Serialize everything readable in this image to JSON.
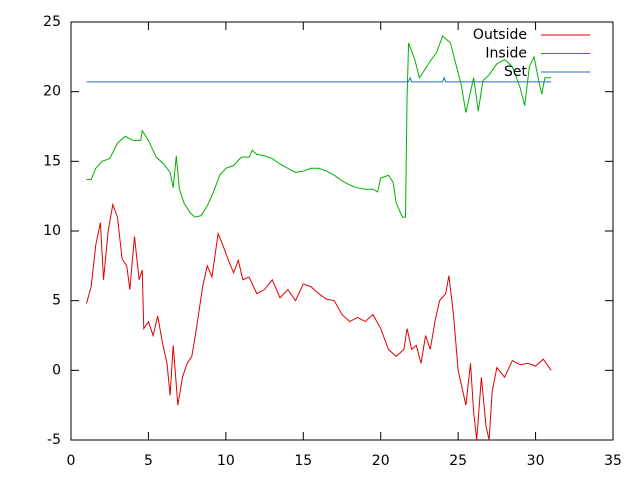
{
  "chart_data": {
    "type": "line",
    "xlim": [
      0,
      35
    ],
    "xticks": [
      0,
      5,
      10,
      15,
      20,
      25,
      30,
      35
    ],
    "ylim": [
      -5,
      25
    ],
    "yticks": [
      -5,
      0,
      5,
      10,
      15,
      20,
      25
    ],
    "legend": "top-right",
    "series": [
      {
        "name": "Outside",
        "color": "#e00000",
        "x": [
          1,
          1.3,
          1.6,
          1.9,
          2.1,
          2.4,
          2.7,
          3.0,
          3.3,
          3.6,
          3.8,
          4.1,
          4.4,
          4.6,
          4.7,
          5.0,
          5.3,
          5.6,
          5.9,
          6.2,
          6.4,
          6.6,
          6.9,
          7.2,
          7.5,
          7.8,
          8.1,
          8.5,
          8.8,
          9.1,
          9.5,
          9.8,
          10.2,
          10.5,
          10.8,
          11.1,
          11.5,
          12,
          12.5,
          13,
          13.5,
          14,
          14.5,
          15,
          15.5,
          16,
          16.5,
          17,
          17.5,
          18,
          18.5,
          19,
          19.5,
          20,
          20.5,
          21,
          21.5,
          21.7,
          22,
          22.3,
          22.6,
          22.9,
          23.2,
          23.5,
          23.8,
          24.2,
          24.4,
          24.7,
          25,
          25.2,
          25.5,
          25.8,
          26,
          26.2,
          26.5,
          26.8,
          27,
          27.2,
          27.5,
          28,
          28.5,
          29,
          29.5,
          30,
          30.5,
          31
        ],
        "values": [
          4.8,
          6,
          9,
          10.6,
          6.5,
          10,
          11.9,
          11,
          8,
          7.5,
          5.8,
          9.6,
          6.5,
          7.2,
          3,
          3.5,
          2.5,
          3.9,
          2,
          0.5,
          -1.8,
          1.8,
          -2.5,
          -0.5,
          0.5,
          1,
          3,
          6,
          7.5,
          6.7,
          9.8,
          9,
          7.8,
          7,
          7.9,
          6.5,
          6.7,
          5.5,
          5.8,
          6.5,
          5.2,
          5.8,
          5,
          6.2,
          6,
          5.5,
          5.1,
          5,
          4,
          3.5,
          3.8,
          3.5,
          4,
          3,
          1.5,
          1,
          1.5,
          3,
          1.5,
          1.8,
          0.5,
          2.5,
          1.5,
          3.5,
          5,
          5.5,
          6.8,
          4,
          0,
          -1,
          -2.5,
          0.5,
          -3,
          -5,
          -0.5,
          -4,
          -5,
          -1.5,
          0.2,
          -0.5,
          0.7,
          0.4,
          0.5,
          0.3,
          0.8,
          0
        ]
      },
      {
        "name": "Inside",
        "color": "#00b000",
        "x": [
          1,
          1.3,
          1.6,
          2,
          2.5,
          3,
          3.5,
          4,
          4.5,
          4.6,
          5,
          5.5,
          6,
          6.4,
          6.6,
          6.8,
          7,
          7.3,
          7.7,
          8,
          8.4,
          8.8,
          9.2,
          9.6,
          10,
          10.5,
          11,
          11.5,
          11.7,
          12,
          12.5,
          13,
          13.5,
          14,
          14.5,
          15,
          15.5,
          16,
          16.5,
          17,
          17.5,
          18,
          18.5,
          19,
          19.5,
          19.8,
          20,
          20.5,
          20.8,
          21,
          21.4,
          21.6,
          21.7,
          21.8,
          22.2,
          22.5,
          22.8,
          23.2,
          23.6,
          24,
          24.2,
          24.5,
          24.8,
          25.2,
          25.5,
          25.8,
          26,
          26.3,
          26.6,
          27,
          27.5,
          28,
          28.5,
          29,
          29.3,
          29.6,
          29.9,
          30.2,
          30.4,
          30.6,
          31
        ],
        "values": [
          13.7,
          13.7,
          14.5,
          15,
          15.2,
          16.3,
          16.8,
          16.5,
          16.5,
          17.2,
          16.5,
          15.3,
          14.8,
          14.2,
          13.1,
          15.4,
          13,
          12,
          11.3,
          11,
          11.1,
          11.8,
          12.8,
          14,
          14.5,
          14.7,
          15.3,
          15.3,
          15.8,
          15.5,
          15.4,
          15.2,
          14.8,
          14.5,
          14.2,
          14.3,
          14.5,
          14.5,
          14.3,
          14,
          13.6,
          13.3,
          13.1,
          13,
          13,
          12.8,
          13.8,
          14,
          13.5,
          12,
          11,
          11,
          19.5,
          23.5,
          22.3,
          21,
          21.5,
          22.2,
          22.8,
          24,
          23.8,
          23.5,
          22.2,
          20.5,
          18.5,
          20,
          21,
          18.6,
          20.8,
          21.2,
          22,
          22.3,
          21.8,
          20.3,
          19,
          21.8,
          22.5,
          20.8,
          19.8,
          21,
          21
        ]
      },
      {
        "name": "Set",
        "color": "#2070c0",
        "x": [
          1,
          21.8,
          21.9,
          22,
          24,
          24.1,
          24.2,
          31
        ],
        "values": [
          20.7,
          20.7,
          21,
          20.7,
          20.7,
          21,
          20.7,
          20.7
        ]
      }
    ]
  }
}
